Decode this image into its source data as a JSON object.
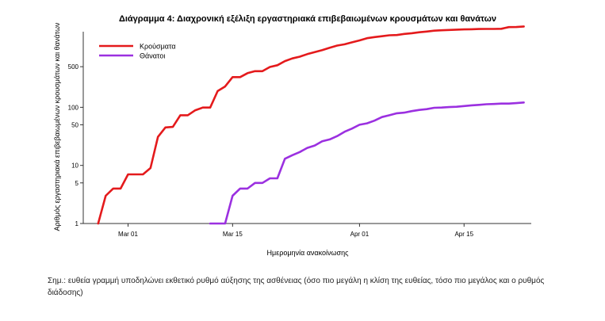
{
  "chart_data": {
    "type": "line",
    "title": "Διάγραμμα 4: Διαχρονική εξέλιξη εργαστηριακά επιβεβαιωμένων κρουσμάτων και θανάτων",
    "xlabel": "Ημερομηνία ανακοίνωσης",
    "ylabel": "Αριθμός εργαστηριακά επιβεβαιωμένων κρουσμάτων και θανάτων",
    "y_scale": "log",
    "ylim": [
      1,
      2000
    ],
    "xlim": [
      "2020-02-24",
      "2020-04-24"
    ],
    "y_ticks": [
      1,
      5,
      10,
      50,
      100,
      500
    ],
    "x_ticks": [
      {
        "date": "2020-03-01",
        "label": "Mar 01"
      },
      {
        "date": "2020-03-15",
        "label": "Mar 15"
      },
      {
        "date": "2020-04-01",
        "label": "Apr 01"
      },
      {
        "date": "2020-04-15",
        "label": "Apr 15"
      }
    ],
    "grid": false,
    "legend_position": "top-left",
    "series": [
      {
        "name": "Κρούσματα",
        "color": "#e41a1c",
        "points": [
          [
            "2020-02-26",
            1
          ],
          [
            "2020-02-27",
            3
          ],
          [
            "2020-02-28",
            4
          ],
          [
            "2020-02-29",
            4
          ],
          [
            "2020-03-01",
            7
          ],
          [
            "2020-03-02",
            7
          ],
          [
            "2020-03-03",
            7
          ],
          [
            "2020-03-04",
            9
          ],
          [
            "2020-03-05",
            31
          ],
          [
            "2020-03-06",
            45
          ],
          [
            "2020-03-07",
            46
          ],
          [
            "2020-03-08",
            73
          ],
          [
            "2020-03-09",
            73
          ],
          [
            "2020-03-10",
            89
          ],
          [
            "2020-03-11",
            99
          ],
          [
            "2020-03-12",
            99
          ],
          [
            "2020-03-13",
            190
          ],
          [
            "2020-03-14",
            228
          ],
          [
            "2020-03-15",
            331
          ],
          [
            "2020-03-16",
            331
          ],
          [
            "2020-03-17",
            387
          ],
          [
            "2020-03-18",
            418
          ],
          [
            "2020-03-19",
            418
          ],
          [
            "2020-03-20",
            495
          ],
          [
            "2020-03-21",
            530
          ],
          [
            "2020-03-22",
            624
          ],
          [
            "2020-03-23",
            695
          ],
          [
            "2020-03-24",
            743
          ],
          [
            "2020-03-25",
            821
          ],
          [
            "2020-03-26",
            892
          ],
          [
            "2020-03-27",
            966
          ],
          [
            "2020-03-28",
            1061
          ],
          [
            "2020-03-29",
            1156
          ],
          [
            "2020-03-30",
            1212
          ],
          [
            "2020-03-31",
            1314
          ],
          [
            "2020-04-01",
            1415
          ],
          [
            "2020-04-02",
            1544
          ],
          [
            "2020-04-03",
            1613
          ],
          [
            "2020-04-04",
            1673
          ],
          [
            "2020-04-05",
            1735
          ],
          [
            "2020-04-06",
            1755
          ],
          [
            "2020-04-07",
            1832
          ],
          [
            "2020-04-08",
            1884
          ],
          [
            "2020-04-09",
            1955
          ],
          [
            "2020-04-10",
            2011
          ],
          [
            "2020-04-11",
            2081
          ],
          [
            "2020-04-12",
            2114
          ],
          [
            "2020-04-13",
            2145
          ],
          [
            "2020-04-14",
            2170
          ],
          [
            "2020-04-15",
            2192
          ],
          [
            "2020-04-16",
            2207
          ],
          [
            "2020-04-17",
            2224
          ],
          [
            "2020-04-18",
            2235
          ],
          [
            "2020-04-19",
            2235
          ],
          [
            "2020-04-20",
            2245
          ],
          [
            "2020-04-21",
            2401
          ],
          [
            "2020-04-22",
            2408
          ],
          [
            "2020-04-23",
            2463
          ]
        ]
      },
      {
        "name": "Θάνατοι",
        "color": "#9b30e0",
        "points": [
          [
            "2020-03-12",
            1
          ],
          [
            "2020-03-13",
            1
          ],
          [
            "2020-03-14",
            1
          ],
          [
            "2020-03-15",
            3
          ],
          [
            "2020-03-16",
            4
          ],
          [
            "2020-03-17",
            4
          ],
          [
            "2020-03-18",
            5
          ],
          [
            "2020-03-19",
            5
          ],
          [
            "2020-03-20",
            6
          ],
          [
            "2020-03-21",
            6
          ],
          [
            "2020-03-22",
            13
          ],
          [
            "2020-03-23",
            15
          ],
          [
            "2020-03-24",
            17
          ],
          [
            "2020-03-25",
            20
          ],
          [
            "2020-03-26",
            22
          ],
          [
            "2020-03-27",
            26
          ],
          [
            "2020-03-28",
            28
          ],
          [
            "2020-03-29",
            32
          ],
          [
            "2020-03-30",
            38
          ],
          [
            "2020-03-31",
            43
          ],
          [
            "2020-04-01",
            50
          ],
          [
            "2020-04-02",
            53
          ],
          [
            "2020-04-03",
            59
          ],
          [
            "2020-04-04",
            68
          ],
          [
            "2020-04-05",
            73
          ],
          [
            "2020-04-06",
            79
          ],
          [
            "2020-04-07",
            81
          ],
          [
            "2020-04-08",
            86
          ],
          [
            "2020-04-09",
            90
          ],
          [
            "2020-04-10",
            93
          ],
          [
            "2020-04-11",
            98
          ],
          [
            "2020-04-12",
            99
          ],
          [
            "2020-04-13",
            101
          ],
          [
            "2020-04-14",
            102
          ],
          [
            "2020-04-15",
            105
          ],
          [
            "2020-04-16",
            108
          ],
          [
            "2020-04-17",
            110
          ],
          [
            "2020-04-18",
            113
          ],
          [
            "2020-04-19",
            114
          ],
          [
            "2020-04-20",
            116
          ],
          [
            "2020-04-21",
            116
          ],
          [
            "2020-04-22",
            118
          ],
          [
            "2020-04-23",
            121
          ]
        ]
      }
    ]
  },
  "note": "Σημ.: ευθεία γραμμή υποδηλώνει εκθετικό ρυθμό αύξησης της ασθένειας (όσο πιο μεγάλη η κλίση της ευθείας, τόσο πιο μεγάλος και ο ρυθμός διάδοσης)"
}
